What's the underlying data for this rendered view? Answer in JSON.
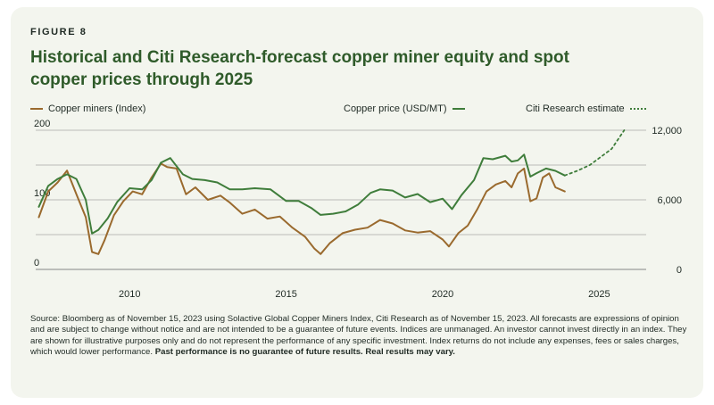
{
  "figure_label": "FIGURE 8",
  "title": "Historical and Citi Research-forecast copper miner equity and spot copper prices through 2025",
  "source_text": "Source: Bloomberg as of November 15, 2023 using Solactive Global Copper Miners Index, Citi Research as of November 15, 2023. All forecasts are expressions of opinion and are subject to change without notice and are not intended to be a guarantee of future events. Indices are unmanaged. An investor cannot invest directly in an index. They are shown for illustrative purposes only and do not represent the performance of any specific investment. Index returns do not include any expenses, fees or sales charges, which would lower performance.",
  "source_bold": "Past performance is no guarantee of future results. Real results may vary.",
  "colors": {
    "miners": "#9a6a2e",
    "copper": "#3f7d3b",
    "grid": "#6b6b6b"
  },
  "chart_data": {
    "type": "line",
    "title": "Historical and Citi Research-forecast copper miner equity and spot copper prices through 2025",
    "legend_placement": "top",
    "grid": "horizontal",
    "x_ticks": [
      "2010",
      "2015",
      "2020",
      "2025"
    ],
    "x_range": [
      2007.0,
      2026.5
    ],
    "y_left": {
      "ticks": [
        "0",
        "100",
        "200"
      ],
      "range": [
        0,
        200
      ],
      "label": ""
    },
    "y_right": {
      "ticks": [
        "0",
        "6,000",
        "12,000"
      ],
      "range": [
        0,
        12000
      ],
      "label": ""
    },
    "series": [
      {
        "name": "Copper miners (Index)",
        "axis": "left",
        "x": [
          2007.1,
          2007.4,
          2007.7,
          2008.0,
          2008.3,
          2008.6,
          2008.8,
          2009.0,
          2009.2,
          2009.5,
          2009.8,
          2010.1,
          2010.4,
          2010.7,
          2011.0,
          2011.2,
          2011.5,
          2011.8,
          2012.1,
          2012.5,
          2012.9,
          2013.2,
          2013.6,
          2014.0,
          2014.4,
          2014.8,
          2015.2,
          2015.6,
          2015.9,
          2016.1,
          2016.4,
          2016.8,
          2017.2,
          2017.6,
          2018.0,
          2018.4,
          2018.8,
          2019.2,
          2019.6,
          2020.0,
          2020.2,
          2020.5,
          2020.8,
          2021.1,
          2021.4,
          2021.7,
          2022.0,
          2022.2,
          2022.4,
          2022.6,
          2022.8,
          2023.0,
          2023.2,
          2023.4,
          2023.6,
          2023.9
        ],
        "values": [
          75,
          112,
          125,
          142,
          108,
          75,
          25,
          22,
          42,
          78,
          98,
          112,
          108,
          132,
          152,
          147,
          145,
          108,
          118,
          100,
          106,
          96,
          80,
          86,
          73,
          76,
          60,
          47,
          30,
          22,
          38,
          52,
          57,
          60,
          71,
          66,
          56,
          53,
          55,
          43,
          33,
          52,
          63,
          86,
          112,
          122,
          127,
          118,
          138,
          145,
          98,
          102,
          132,
          138,
          118,
          112
        ]
      },
      {
        "name": "Copper price (USD/MT)",
        "axis": "right",
        "x": [
          2007.1,
          2007.4,
          2007.7,
          2008.0,
          2008.3,
          2008.6,
          2008.8,
          2009.0,
          2009.3,
          2009.6,
          2010.0,
          2010.4,
          2010.7,
          2011.0,
          2011.3,
          2011.7,
          2012.0,
          2012.4,
          2012.8,
          2013.2,
          2013.6,
          2014.0,
          2014.5,
          2015.0,
          2015.4,
          2015.8,
          2016.1,
          2016.5,
          2016.9,
          2017.3,
          2017.7,
          2018.0,
          2018.4,
          2018.8,
          2019.2,
          2019.6,
          2020.0,
          2020.3,
          2020.6,
          2021.0,
          2021.3,
          2021.6,
          2022.0,
          2022.2,
          2022.4,
          2022.6,
          2022.8,
          2023.0,
          2023.3,
          2023.6,
          2023.9
        ],
        "values": [
          5400,
          7200,
          7800,
          8200,
          7800,
          6000,
          3100,
          3400,
          4400,
          5800,
          7000,
          6900,
          7700,
          9200,
          9600,
          8200,
          7800,
          7700,
          7500,
          6900,
          6900,
          7000,
          6900,
          5900,
          5900,
          5300,
          4700,
          4800,
          5000,
          5600,
          6600,
          6900,
          6800,
          6200,
          6500,
          5800,
          6100,
          5200,
          6400,
          7700,
          9600,
          9500,
          9800,
          9300,
          9400,
          9900,
          8000,
          8300,
          8700,
          8500,
          8100
        ]
      },
      {
        "name": "Citi Research estimate",
        "axis": "right",
        "style": "dotted",
        "x": [
          2023.9,
          2024.3,
          2024.7,
          2025.0,
          2025.4,
          2025.8
        ],
        "values": [
          8100,
          8500,
          9000,
          9600,
          10400,
          12000
        ]
      }
    ]
  }
}
